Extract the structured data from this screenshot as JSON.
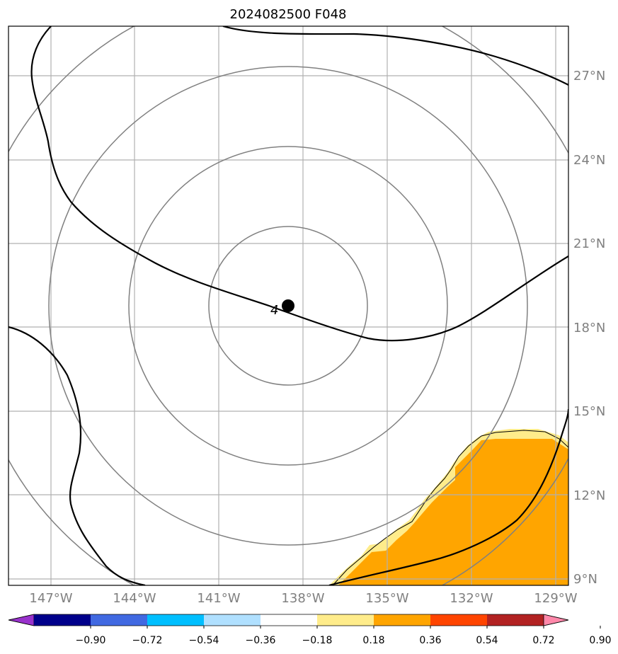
{
  "title": "2024082500 F048",
  "map": {
    "lat_labels": [
      "27°N",
      "24°N",
      "21°N",
      "18°N",
      "15°N",
      "12°N",
      "9°N"
    ],
    "lon_labels": [
      "147°W",
      "144°W",
      "141°W",
      "138°W",
      "135°W",
      "132°W",
      "129°W"
    ],
    "contour_label": "4",
    "range_ring_color": "#808080",
    "gridline_color": "#b0b0b0",
    "storm_center_marker": "black-dot",
    "positive_fill_colors": [
      "#ffec8b",
      "#ffa500"
    ]
  },
  "colorbar": {
    "labels": [
      "−0.90",
      "−0.72",
      "−0.54",
      "−0.36",
      "−0.18",
      "0.18",
      "0.36",
      "0.54",
      "0.72",
      "0.90"
    ],
    "colors": [
      "#9932cc",
      "#00008b",
      "#4169e1",
      "#00bfff",
      "#b0e0ff",
      "#ffffff",
      "#ffec8b",
      "#ffa500",
      "#ff4500",
      "#b22222",
      "#ff88aa"
    ]
  }
}
